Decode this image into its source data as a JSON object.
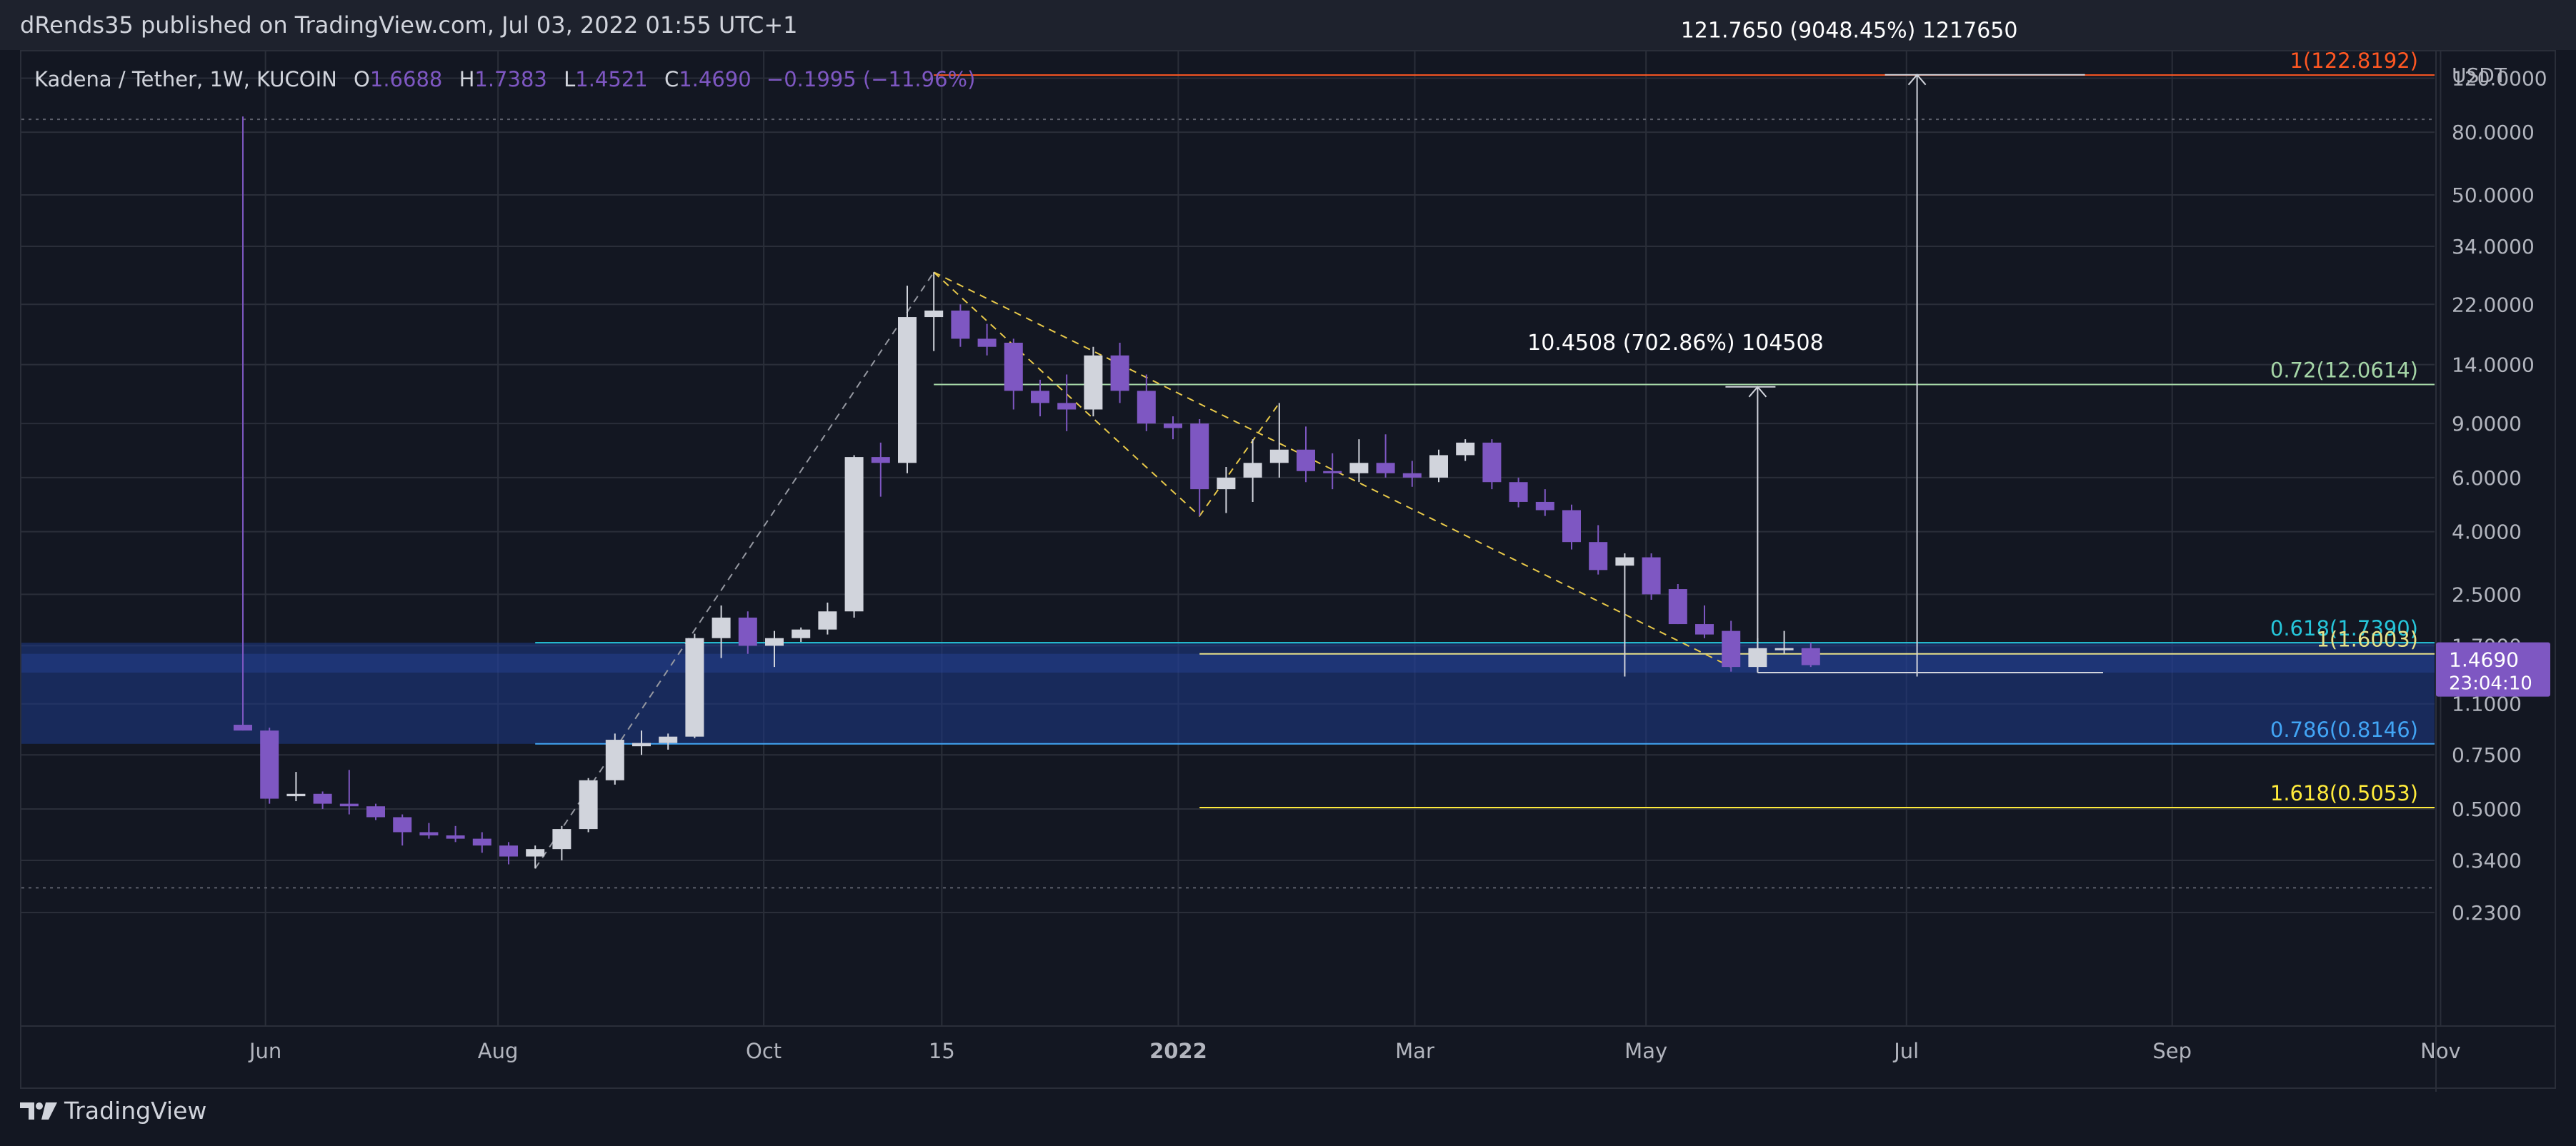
{
  "header": {
    "published": "dRends35 published on TradingView.com, Jul 03, 2022 01:55 UTC+1"
  },
  "legend": {
    "symbol": "Kadena / Tether, 1W, KUCOIN",
    "open_label": "O",
    "open": "1.6688",
    "high_label": "H",
    "high": "1.7383",
    "low_label": "L",
    "low": "1.4521",
    "close_label": "C",
    "close": "1.4690",
    "change": "−0.1995 (−11.96%)"
  },
  "footer": {
    "brand": "TradingView"
  },
  "colors": {
    "up": "#d1d4dc",
    "down": "#7e57c2",
    "grid": "#2a2e39",
    "zone": "#1e3a8a",
    "fib_0618": "#26c6da",
    "fib_1": "#e8e28a",
    "fib_0786": "#42a5f5",
    "fib_1618": "#ffeb3b",
    "fib_072": "#a5d6a7",
    "fib_top": "#ff5722"
  },
  "chart_data": {
    "type": "candlestick",
    "scale": "log",
    "currency": "USDT",
    "y_ticks": [
      "120.0000",
      "80.0000",
      "50.0000",
      "34.0000",
      "22.0000",
      "14.0000",
      "9.0000",
      "6.0000",
      "4.0000",
      "2.5000",
      "1.7000",
      "1.1000",
      "0.7500",
      "0.5000",
      "0.3400",
      "0.2300"
    ],
    "x_ticks": [
      "Jun",
      "Aug",
      "Oct",
      "15",
      "2022",
      "Mar",
      "May",
      "Jul",
      "Sep",
      "Nov"
    ],
    "candles": [
      {
        "t": 4.0,
        "o": 0.94,
        "h": 90,
        "l": 0.9,
        "c": 0.9
      },
      {
        "t": 5.0,
        "o": 0.9,
        "h": 0.92,
        "l": 0.52,
        "c": 0.54
      },
      {
        "t": 6.0,
        "o": 0.55,
        "h": 0.66,
        "l": 0.53,
        "c": 0.56
      },
      {
        "t": 7.0,
        "o": 0.56,
        "h": 0.57,
        "l": 0.5,
        "c": 0.52
      },
      {
        "t": 8.0,
        "o": 0.52,
        "h": 0.67,
        "l": 0.48,
        "c": 0.51
      },
      {
        "t": 9.0,
        "o": 0.51,
        "h": 0.52,
        "l": 0.46,
        "c": 0.47
      },
      {
        "t": 10.0,
        "o": 0.47,
        "h": 0.48,
        "l": 0.38,
        "c": 0.42
      },
      {
        "t": 11.0,
        "o": 0.42,
        "h": 0.45,
        "l": 0.4,
        "c": 0.41
      },
      {
        "t": 12.0,
        "o": 0.41,
        "h": 0.44,
        "l": 0.39,
        "c": 0.4
      },
      {
        "t": 13.0,
        "o": 0.4,
        "h": 0.42,
        "l": 0.36,
        "c": 0.38
      },
      {
        "t": 14.0,
        "o": 0.38,
        "h": 0.39,
        "l": 0.33,
        "c": 0.35
      },
      {
        "t": 15.0,
        "o": 0.35,
        "h": 0.38,
        "l": 0.32,
        "c": 0.37
      },
      {
        "t": 16.0,
        "o": 0.37,
        "h": 0.44,
        "l": 0.34,
        "c": 0.43
      },
      {
        "t": 17.0,
        "o": 0.43,
        "h": 0.63,
        "l": 0.42,
        "c": 0.62
      },
      {
        "t": 18.0,
        "o": 0.62,
        "h": 0.88,
        "l": 0.6,
        "c": 0.84
      },
      {
        "t": 19.0,
        "o": 0.8,
        "h": 0.9,
        "l": 0.75,
        "c": 0.82
      },
      {
        "t": 20.0,
        "o": 0.82,
        "h": 0.88,
        "l": 0.78,
        "c": 0.86
      },
      {
        "t": 21.0,
        "o": 0.86,
        "h": 1.86,
        "l": 0.85,
        "c": 1.8
      },
      {
        "t": 22.0,
        "o": 1.8,
        "h": 2.3,
        "l": 1.55,
        "c": 2.1
      },
      {
        "t": 23.0,
        "o": 2.1,
        "h": 2.2,
        "l": 1.6,
        "c": 1.7
      },
      {
        "t": 24.0,
        "o": 1.7,
        "h": 1.9,
        "l": 1.45,
        "c": 1.8
      },
      {
        "t": 25.0,
        "o": 1.8,
        "h": 1.95,
        "l": 1.75,
        "c": 1.92
      },
      {
        "t": 26.0,
        "o": 1.92,
        "h": 2.35,
        "l": 1.85,
        "c": 2.2
      },
      {
        "t": 27.0,
        "o": 2.2,
        "h": 7.1,
        "l": 2.1,
        "c": 7.0
      },
      {
        "t": 28.0,
        "o": 7.0,
        "h": 7.8,
        "l": 5.2,
        "c": 6.7
      },
      {
        "t": 29.0,
        "o": 6.7,
        "h": 25.3,
        "l": 6.2,
        "c": 20.0
      },
      {
        "t": 30.0,
        "o": 20.0,
        "h": 28.0,
        "l": 15.5,
        "c": 21.0
      },
      {
        "t": 31.0,
        "o": 21.0,
        "h": 22.0,
        "l": 16.0,
        "c": 17.0
      },
      {
        "t": 32.0,
        "o": 17.0,
        "h": 19.0,
        "l": 15.0,
        "c": 16.0
      },
      {
        "t": 33.0,
        "o": 16.5,
        "h": 17.0,
        "l": 10.0,
        "c": 11.5
      },
      {
        "t": 34.0,
        "o": 11.5,
        "h": 12.5,
        "l": 9.5,
        "c": 10.5
      },
      {
        "t": 35.0,
        "o": 10.5,
        "h": 13.0,
        "l": 8.5,
        "c": 10.0
      },
      {
        "t": 36.0,
        "o": 10.0,
        "h": 16.0,
        "l": 9.5,
        "c": 15.0
      },
      {
        "t": 37.0,
        "o": 15.0,
        "h": 16.5,
        "l": 10.5,
        "c": 11.5
      },
      {
        "t": 38.0,
        "o": 11.5,
        "h": 13.0,
        "l": 8.5,
        "c": 9.0
      },
      {
        "t": 39.0,
        "o": 9.0,
        "h": 9.5,
        "l": 8.0,
        "c": 8.7
      },
      {
        "t": 40.0,
        "o": 9.0,
        "h": 9.3,
        "l": 4.5,
        "c": 5.5
      },
      {
        "t": 41.0,
        "o": 5.5,
        "h": 6.5,
        "l": 4.6,
        "c": 6.0
      },
      {
        "t": 42.0,
        "o": 6.0,
        "h": 8.0,
        "l": 5.0,
        "c": 6.7
      },
      {
        "t": 43.0,
        "o": 6.7,
        "h": 10.5,
        "l": 6.0,
        "c": 7.4
      },
      {
        "t": 44.0,
        "o": 7.4,
        "h": 8.8,
        "l": 5.8,
        "c": 6.3
      },
      {
        "t": 45.0,
        "o": 6.3,
        "h": 7.2,
        "l": 5.5,
        "c": 6.2
      },
      {
        "t": 46.0,
        "o": 6.2,
        "h": 8.0,
        "l": 5.8,
        "c": 6.7
      },
      {
        "t": 47.0,
        "o": 6.7,
        "h": 8.3,
        "l": 6.0,
        "c": 6.2
      },
      {
        "t": 48.0,
        "o": 6.2,
        "h": 6.8,
        "l": 5.6,
        "c": 6.0
      },
      {
        "t": 49.0,
        "o": 6.0,
        "h": 7.4,
        "l": 5.8,
        "c": 7.1
      },
      {
        "t": 50.0,
        "o": 7.1,
        "h": 8.0,
        "l": 6.8,
        "c": 7.8
      },
      {
        "t": 51.0,
        "o": 7.8,
        "h": 8.0,
        "l": 5.5,
        "c": 5.8
      },
      {
        "t": 52.0,
        "o": 5.8,
        "h": 6.0,
        "l": 4.8,
        "c": 5.0
      },
      {
        "t": 53.0,
        "o": 5.0,
        "h": 5.5,
        "l": 4.5,
        "c": 4.7
      },
      {
        "t": 54.0,
        "o": 4.7,
        "h": 4.9,
        "l": 3.5,
        "c": 3.7
      },
      {
        "t": 55.0,
        "o": 3.7,
        "h": 4.2,
        "l": 2.9,
        "c": 3.0
      },
      {
        "t": 56.0,
        "o": 3.1,
        "h": 3.4,
        "l": 1.35,
        "c": 3.3
      },
      {
        "t": 57.0,
        "o": 3.3,
        "h": 3.4,
        "l": 2.4,
        "c": 2.5
      },
      {
        "t": 58.0,
        "o": 2.6,
        "h": 2.7,
        "l": 2.0,
        "c": 2.0
      },
      {
        "t": 59.0,
        "o": 2.0,
        "h": 2.3,
        "l": 1.8,
        "c": 1.85
      },
      {
        "t": 60.0,
        "o": 1.9,
        "h": 2.05,
        "l": 1.4,
        "c": 1.45
      },
      {
        "t": 61.0,
        "o": 1.45,
        "h": 1.8,
        "l": 1.4,
        "c": 1.67
      },
      {
        "t": 62.0,
        "o": 1.67,
        "h": 1.9,
        "l": 1.6,
        "c": 1.67
      },
      {
        "t": 63.0,
        "o": 1.67,
        "h": 1.74,
        "l": 1.45,
        "c": 1.47
      }
    ],
    "zone": {
      "low": 0.8146,
      "high": 1.739
    },
    "fib_levels": [
      {
        "label": "1(122.8192)",
        "value": 122.8192,
        "color": "#ff5722",
        "t0": 30.0,
        "t1": 90.0
      },
      {
        "label": "0.72(12.0614)",
        "value": 12.0614,
        "color": "#a5d6a7",
        "t0": 30.0,
        "t1": 90.0
      },
      {
        "label": "0.618(1.7390)",
        "value": 1.739,
        "color": "#26c6da",
        "t0": 15.0,
        "t1": 90.0
      },
      {
        "label": "1(1.6003)",
        "value": 1.6003,
        "color": "#e8e28a",
        "t0": 40.0,
        "t1": 90.0
      },
      {
        "label": "0.786(0.8146)",
        "value": 0.8146,
        "color": "#42a5f5",
        "t0": 15.0,
        "t1": 90.0
      },
      {
        "label": "1.618(0.5053)",
        "value": 0.5053,
        "color": "#ffeb3b",
        "t0": 40.0,
        "t1": 90.0
      }
    ],
    "measures": [
      {
        "label": "10.4508 (702.86%) 104508",
        "from": 1.39,
        "to": 11.85,
        "t": 61.0
      },
      {
        "label": "121.7650 (9048.45%) 1217650",
        "from": 1.35,
        "to": 123.1,
        "t": 67.0
      }
    ],
    "last_price": "1.4690",
    "countdown": "23:04:10"
  }
}
